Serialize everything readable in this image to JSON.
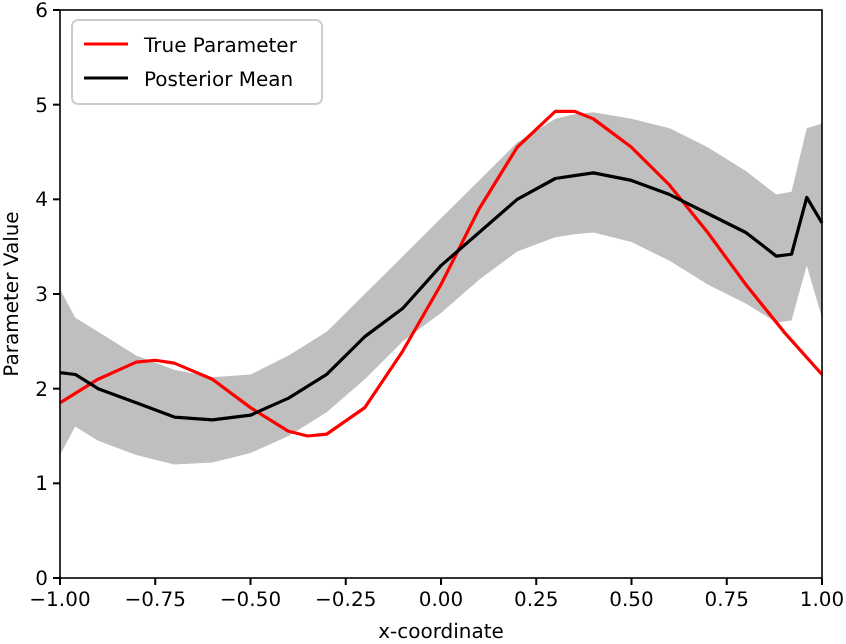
{
  "chart_data": {
    "type": "line",
    "xlabel": "x-coordinate",
    "ylabel": "Parameter Value",
    "xlim": [
      -1,
      1
    ],
    "ylim": [
      0,
      6
    ],
    "xticks": [
      {
        "value": -1,
        "label": "−1.00"
      },
      {
        "value": -0.75,
        "label": "−0.75"
      },
      {
        "value": -0.5,
        "label": "−0.50"
      },
      {
        "value": -0.25,
        "label": "−0.25"
      },
      {
        "value": 0,
        "label": "0.00"
      },
      {
        "value": 0.25,
        "label": "0.25"
      },
      {
        "value": 0.5,
        "label": "0.50"
      },
      {
        "value": 0.75,
        "label": "0.75"
      },
      {
        "value": 1,
        "label": "1.00"
      }
    ],
    "yticks": [
      0,
      1,
      2,
      3,
      4,
      5,
      6
    ],
    "legend": "top left",
    "grid": false,
    "marker": "none",
    "line_style": "solid",
    "series": [
      {
        "name": "True Parameter",
        "color": "#ff0000",
        "x": [
          -1,
          -0.9,
          -0.8,
          -0.75,
          -0.7,
          -0.6,
          -0.5,
          -0.4,
          -0.35,
          -0.3,
          -0.2,
          -0.1,
          0,
          0.1,
          0.2,
          0.3,
          0.35,
          0.4,
          0.5,
          0.6,
          0.7,
          0.8,
          0.9,
          1
        ],
        "values": [
          1.85,
          2.1,
          2.28,
          2.3,
          2.27,
          2.1,
          1.8,
          1.55,
          1.5,
          1.52,
          1.8,
          2.4,
          3.1,
          3.9,
          4.55,
          4.93,
          4.93,
          4.85,
          4.55,
          4.15,
          3.65,
          3.1,
          2.6,
          2.15
        ]
      },
      {
        "name": "Posterior Mean",
        "color": "#000000",
        "x": [
          -1,
          -0.96,
          -0.9,
          -0.8,
          -0.7,
          -0.6,
          -0.5,
          -0.4,
          -0.3,
          -0.2,
          -0.1,
          0,
          0.1,
          0.2,
          0.3,
          0.35,
          0.4,
          0.5,
          0.6,
          0.7,
          0.8,
          0.88,
          0.92,
          0.96,
          1
        ],
        "values": [
          2.17,
          2.15,
          2.0,
          1.85,
          1.7,
          1.67,
          1.72,
          1.9,
          2.15,
          2.55,
          2.85,
          3.3,
          3.65,
          4.0,
          4.22,
          4.25,
          4.28,
          4.2,
          4.05,
          3.85,
          3.65,
          3.4,
          3.42,
          4.02,
          3.75
        ],
        "upper": [
          3.05,
          2.75,
          2.6,
          2.35,
          2.2,
          2.12,
          2.15,
          2.35,
          2.6,
          3.0,
          3.4,
          3.8,
          4.2,
          4.6,
          4.85,
          4.9,
          4.92,
          4.85,
          4.75,
          4.55,
          4.3,
          4.05,
          4.08,
          4.75,
          4.8
        ],
        "lower": [
          1.3,
          1.6,
          1.45,
          1.3,
          1.2,
          1.22,
          1.32,
          1.5,
          1.75,
          2.1,
          2.5,
          2.8,
          3.15,
          3.45,
          3.6,
          3.63,
          3.65,
          3.55,
          3.35,
          3.1,
          2.9,
          2.7,
          2.72,
          3.3,
          2.75
        ]
      }
    ]
  }
}
